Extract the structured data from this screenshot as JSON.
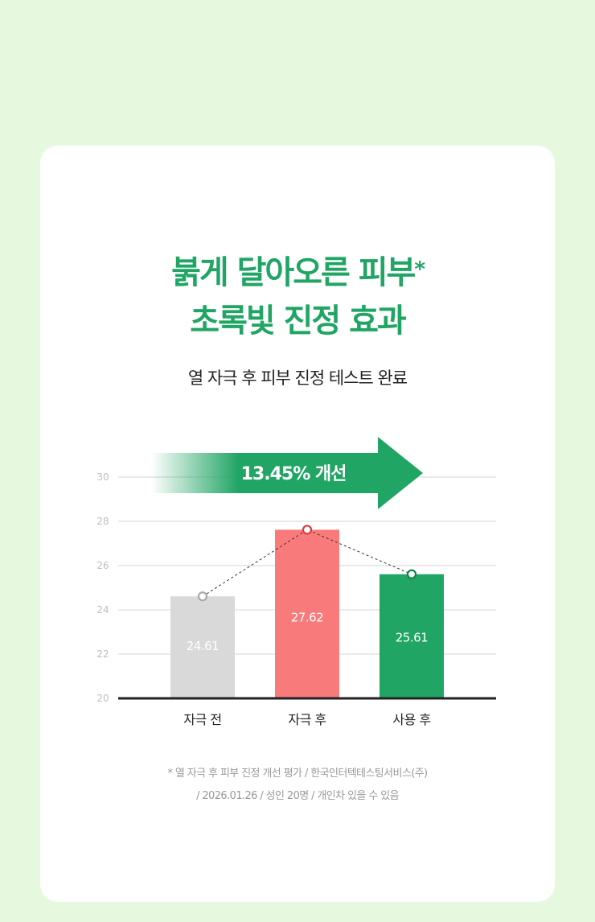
{
  "title": {
    "line1": "붉게 달아오른 피부",
    "asterisk": "*",
    "line2": "초록빛 진정 효과"
  },
  "subtitle": "열 자극 후 피부 진정 테스트 완료",
  "improvement_label": "13.45% 개선",
  "footnote": {
    "line1": "* 열 자극 후 피부 진정 개선 평가 / 한국인터텍테스팅서비스(주)",
    "line2": "/ 2026.01.26 / 성인 20명 / 개인차 있을 수 있음"
  },
  "colors": {
    "brand_green": "#21a565",
    "bar_before": "#d9d9d9",
    "bar_after_stimulus": "#f97a7a",
    "bar_after_use": "#21a565"
  },
  "chart_data": {
    "type": "bar",
    "categories": [
      "자극 전",
      "자극 후",
      "사용 후"
    ],
    "values": [
      24.61,
      27.62,
      25.61
    ],
    "value_labels": [
      "24.61",
      "27.62",
      "25.61"
    ],
    "yticks": [
      "20",
      "22",
      "24",
      "26",
      "28",
      "30"
    ],
    "ylim": [
      20,
      30
    ],
    "grid": true,
    "trend_line": "dashed line connecting bar tops"
  }
}
